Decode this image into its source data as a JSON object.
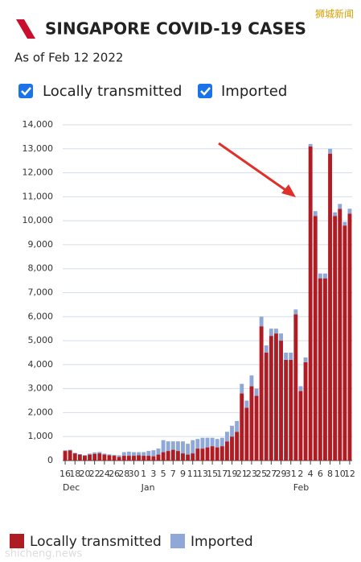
{
  "chart_data": {
    "type": "stacked_bar",
    "title": "SINGAPORE COVID-19 CASES",
    "subtitle": "As of Feb 12 2022",
    "watermarks": [
      "狮城新闻",
      "shicheng.news"
    ],
    "categories": [
      "16",
      null,
      "18",
      null,
      "20",
      null,
      "22",
      null,
      "24",
      null,
      "26",
      null,
      "28",
      null,
      "30",
      null,
      "1",
      null,
      "3",
      null,
      "5",
      null,
      "7",
      null,
      "9",
      null,
      "11",
      null,
      "13",
      null,
      "15",
      null,
      "17",
      null,
      "19",
      null,
      "21",
      null,
      "23",
      null,
      "25",
      null,
      "27",
      null,
      "29",
      null,
      "31",
      null,
      "2",
      null,
      "4",
      null,
      "6",
      null,
      "8",
      null,
      "10",
      null,
      "12"
    ],
    "groups": [
      {
        "label": "Dec",
        "count": 16
      },
      {
        "label": "Jan",
        "count": 31
      },
      {
        "label": "Feb",
        "count": 12
      }
    ],
    "series": [
      {
        "name": "Locally transmitted",
        "color": "#b01c24",
        "values": [
          400,
          420,
          300,
          250,
          200,
          250,
          280,
          300,
          250,
          220,
          200,
          150,
          200,
          200,
          200,
          220,
          200,
          200,
          180,
          250,
          350,
          400,
          450,
          400,
          300,
          250,
          300,
          500,
          500,
          550,
          600,
          550,
          600,
          800,
          1000,
          1200,
          2800,
          2200,
          3100,
          2700,
          5600,
          4500,
          5200,
          5300,
          5000,
          4200,
          4200,
          6100,
          2900,
          4100,
          13100,
          10200,
          7600,
          7600,
          12800,
          10200,
          10500,
          9800,
          10300
        ]
      },
      {
        "name": "Imported",
        "color": "#8fa8d8",
        "values": [
          30,
          30,
          20,
          20,
          30,
          40,
          60,
          60,
          40,
          40,
          40,
          70,
          150,
          170,
          150,
          130,
          150,
          200,
          250,
          250,
          500,
          400,
          350,
          400,
          500,
          450,
          550,
          400,
          450,
          400,
          350,
          350,
          350,
          400,
          450,
          450,
          400,
          300,
          450,
          300,
          400,
          300,
          300,
          200,
          300,
          300,
          300,
          200,
          200,
          200,
          100,
          200,
          200,
          200,
          200,
          150,
          200,
          150,
          200
        ]
      }
    ],
    "ylim": [
      0,
      14000
    ],
    "yticks": [
      0,
      {
        "value": 1000,
        "label": "1,000"
      },
      {
        "value": 2000,
        "label": "2,000"
      },
      {
        "value": 3000,
        "label": "3,000"
      },
      {
        "value": 4000,
        "label": "4,000"
      },
      {
        "value": 5000,
        "label": "5,000"
      },
      {
        "value": 6000,
        "label": "6,000"
      },
      {
        "value": 7000,
        "label": "7,000"
      },
      {
        "value": 8000,
        "label": "8,000"
      },
      {
        "value": 9000,
        "label": "9,000"
      },
      {
        "value": 10000,
        "label": "10,000"
      },
      {
        "value": 11000,
        "label": "11,000"
      },
      {
        "value": 12000,
        "label": "12,000"
      },
      {
        "value": 13000,
        "label": "13,000"
      },
      {
        "value": 14000,
        "label": "14,000"
      }
    ],
    "grid": true
  }
}
